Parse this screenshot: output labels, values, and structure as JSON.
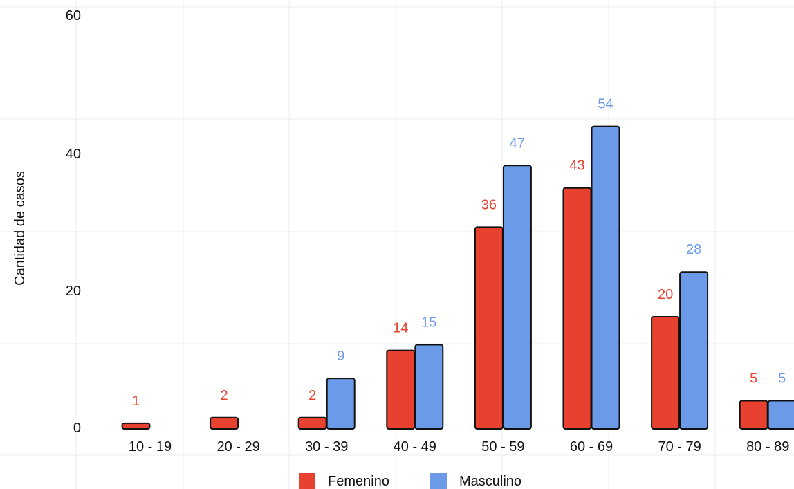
{
  "chart_data": {
    "type": "bar",
    "title": "",
    "xlabel": "",
    "ylabel": "Cantidad de casos",
    "ylim": [
      0,
      60
    ],
    "yticks": [
      0,
      20,
      40,
      60
    ],
    "grid": true,
    "legend_position": "bottom",
    "categories": [
      "10 - 19",
      "20 - 29",
      "30 - 39",
      "40 - 49",
      "50 - 59",
      "60 - 69",
      "70 - 79",
      "80 - 89"
    ],
    "series": [
      {
        "name": "Femenino",
        "color": "#e8412f",
        "values": [
          1,
          2,
          2,
          14,
          36,
          43,
          20,
          5
        ]
      },
      {
        "name": "Masculino",
        "color": "#6b9be8",
        "values": [
          0,
          0,
          9,
          15,
          47,
          54,
          28,
          5
        ]
      }
    ],
    "data_labels": [
      [
        "1",
        "2",
        "2",
        "14",
        "36",
        "43",
        "20",
        "5"
      ],
      [
        "",
        "",
        "9",
        "15",
        "47",
        "54",
        "28",
        "5"
      ]
    ]
  }
}
